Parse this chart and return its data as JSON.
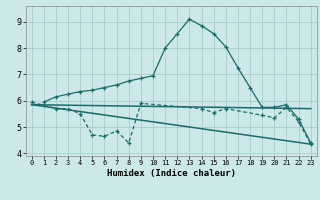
{
  "bg_color": "#cce8e8",
  "grid_color": "#aacccc",
  "line_color": "#1a6b6b",
  "xlim": [
    -0.5,
    23.5
  ],
  "ylim": [
    3.9,
    9.6
  ],
  "yticks": [
    4,
    5,
    6,
    7,
    8,
    9
  ],
  "xticks": [
    0,
    1,
    2,
    3,
    4,
    5,
    6,
    7,
    8,
    9,
    10,
    11,
    12,
    13,
    14,
    15,
    16,
    17,
    18,
    19,
    20,
    21,
    22,
    23
  ],
  "xlabel": "Humidex (Indice chaleur)",
  "curve1_x": [
    1,
    2,
    3,
    4,
    5,
    6,
    7,
    8,
    9,
    10,
    11,
    12,
    13,
    14,
    15,
    16,
    17,
    18,
    19,
    20,
    21,
    22,
    23
  ],
  "curve1_y": [
    5.95,
    6.15,
    6.25,
    6.35,
    6.4,
    6.5,
    6.6,
    6.75,
    6.85,
    6.95,
    8.0,
    8.55,
    9.1,
    8.85,
    8.55,
    8.05,
    7.25,
    6.5,
    5.75,
    5.75,
    5.85,
    5.3,
    4.4
  ],
  "curve2_x": [
    0,
    2,
    3,
    4,
    5,
    6,
    7,
    8,
    9,
    14,
    15,
    16,
    19,
    20,
    21,
    22,
    23
  ],
  "curve2_y": [
    5.95,
    5.7,
    5.7,
    5.5,
    4.7,
    4.65,
    4.85,
    4.4,
    5.9,
    5.7,
    5.55,
    5.7,
    5.45,
    5.35,
    5.75,
    5.2,
    4.35
  ],
  "trend1_x": [
    0,
    23
  ],
  "trend1_y": [
    5.85,
    5.7
  ],
  "trend2_x": [
    0,
    23
  ],
  "trend2_y": [
    5.85,
    4.35
  ]
}
